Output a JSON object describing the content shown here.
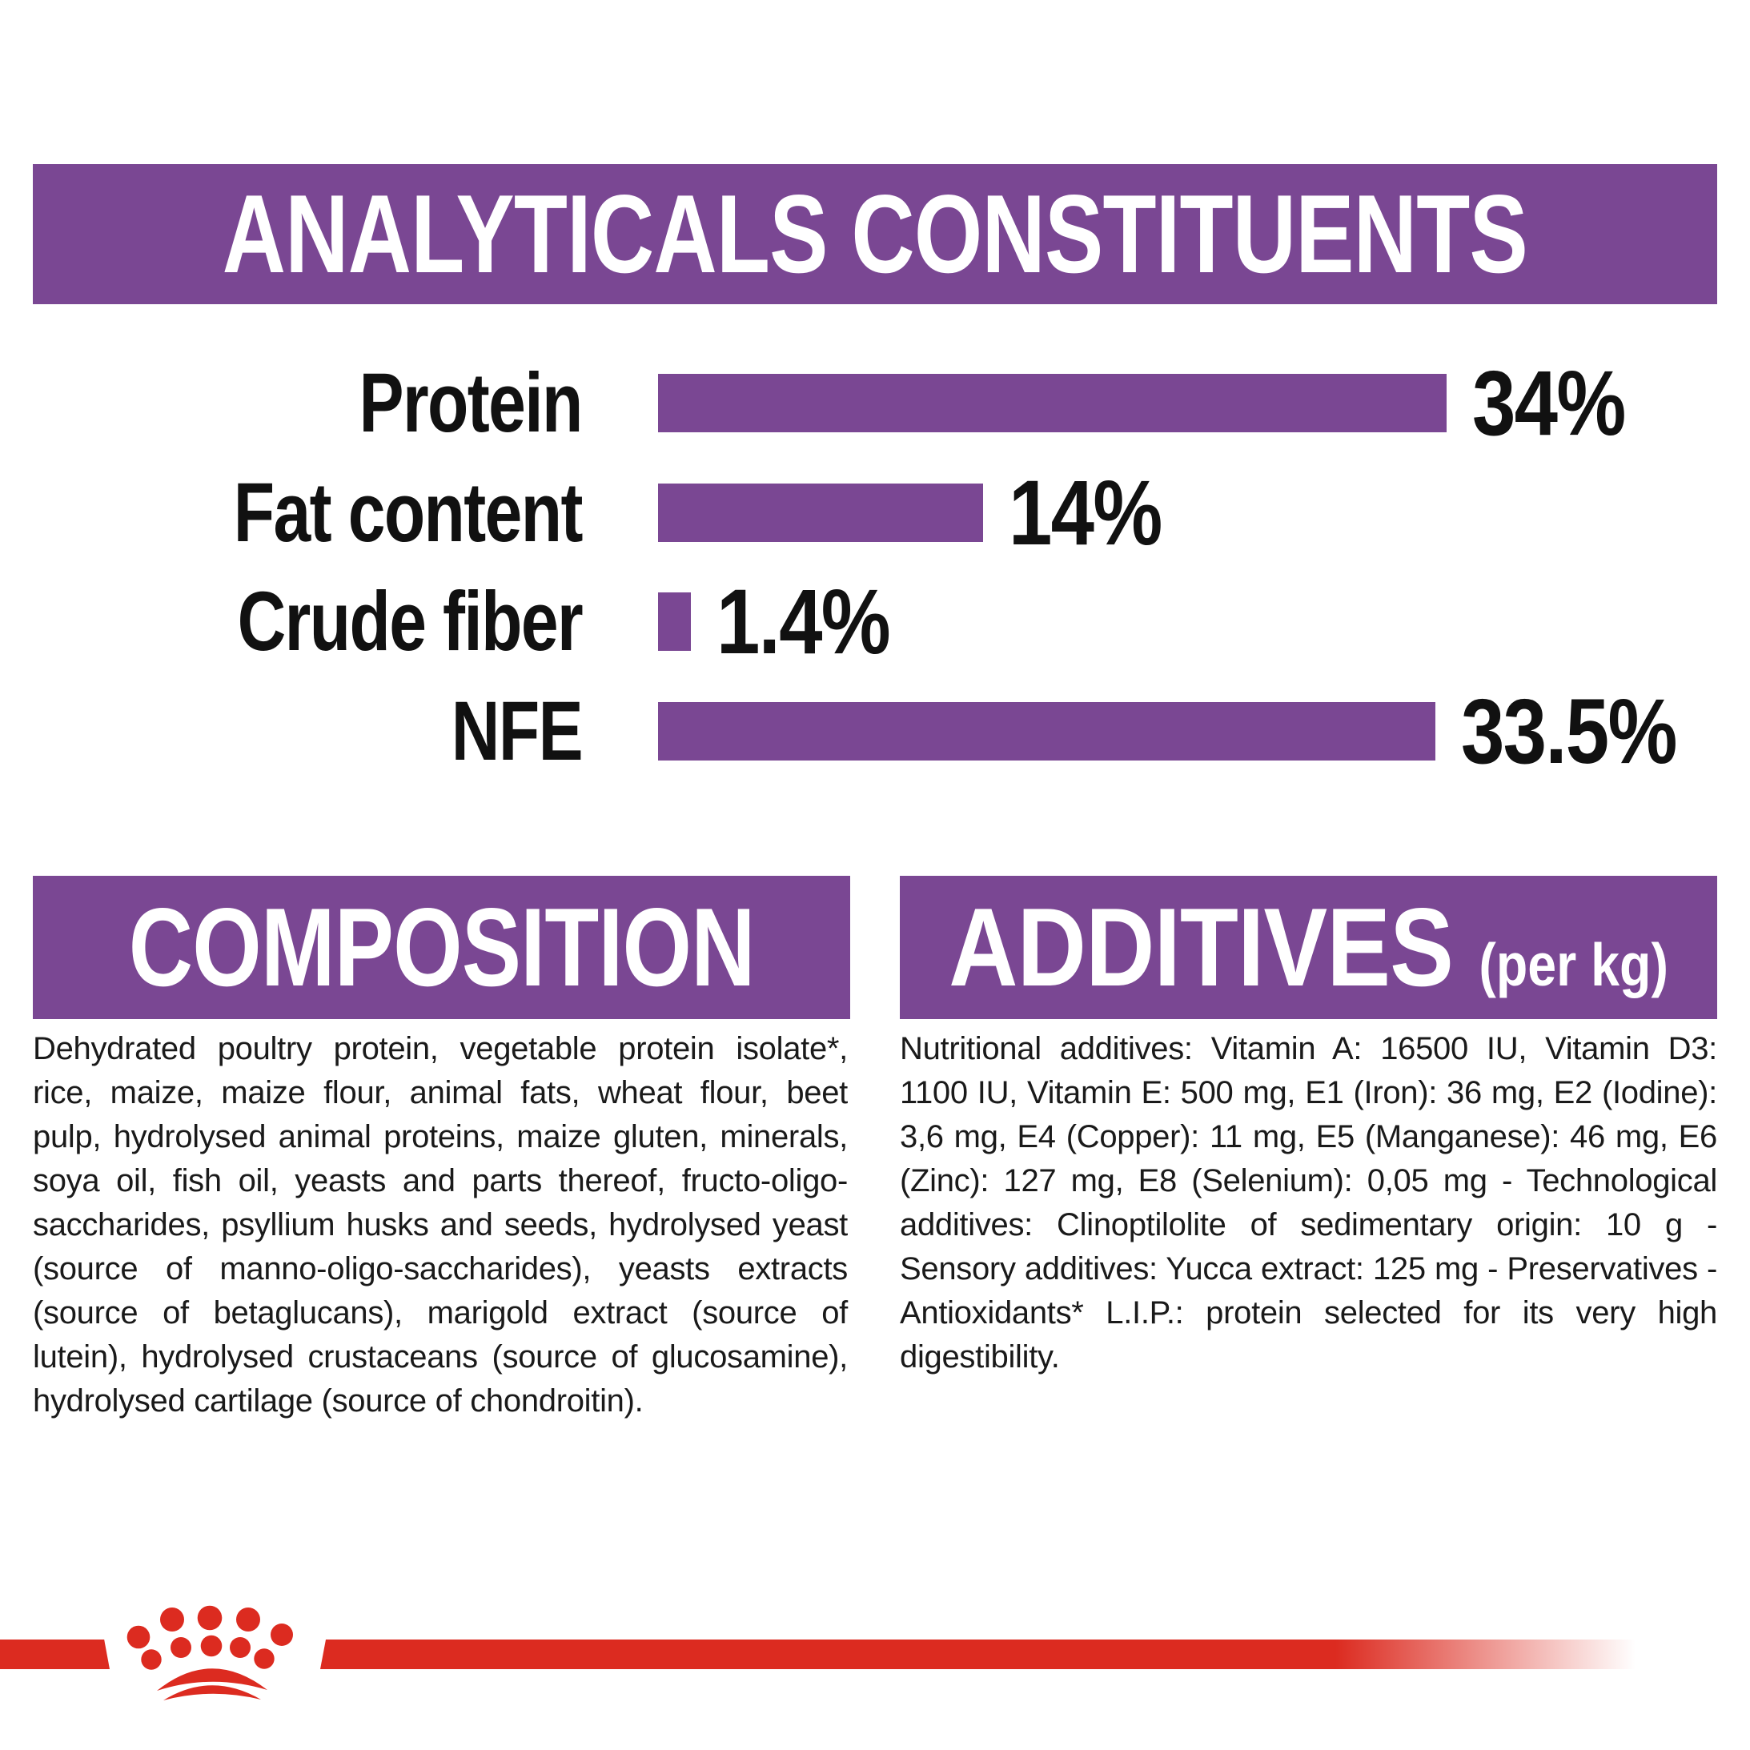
{
  "header": {
    "title": "ANALYTICALS CONSTITUENTS"
  },
  "chart_data": {
    "type": "bar",
    "orientation": "horizontal",
    "title": "ANALYTICALS CONSTITUENTS",
    "categories": [
      "Protein",
      "Fat content",
      "Crude fiber",
      "NFE"
    ],
    "values": [
      34,
      14,
      1.4,
      33.5
    ],
    "value_labels": [
      "34%",
      "14%",
      "1.4%",
      "33.5%"
    ],
    "unit": "%",
    "bar_color": "#7a4793",
    "xlim": [
      0,
      34
    ],
    "axes": "none",
    "grid": false,
    "legend": "none"
  },
  "sections": {
    "composition": {
      "title": "COMPOSITION",
      "body": "Dehydrated poultry protein, vegetable protein isolate*, rice, maize, maize flour, animal fats, wheat flour, beet pulp, hydrolysed animal proteins, maize gluten, minerals, soya oil, fish oil, yeasts and parts thereof, fructo-oligo-saccharides, psyllium husks and seeds, hydrolysed yeast (source of manno-oligo-saccharides), yeasts extracts (source of betaglucans), marigold extract (source of lutein), hydrolysed crustaceans (source of glucosamine), hydrolysed cartilage (source of chondroitin)."
    },
    "additives": {
      "title": "ADDITIVES",
      "title_suffix": "(per kg)",
      "body": "Nutritional additives: Vitamin A: 16500 IU, Vitamin D3: 1100 IU, Vitamin E: 500 mg, E1 (Iron): 36 mg, E2 (Iodine): 3,6 mg, E4 (Copper): 11 mg, E5 (Manganese): 46 mg, E6 (Zinc): 127 mg, E8 (Selenium): 0,05 mg - Technological additives: Clinoptilolite of sedimentary origin: 10 g - Sensory additives: Yucca extract: 125 mg - Preservatives - Antioxidants* L.I.P.: protein selected for its very high digestibility."
    }
  },
  "footer": {
    "logo": "royal-canin-crown-icon"
  },
  "colors": {
    "purple": "#7a4793",
    "red": "#dc2b20",
    "text": "#1a1a1a"
  }
}
